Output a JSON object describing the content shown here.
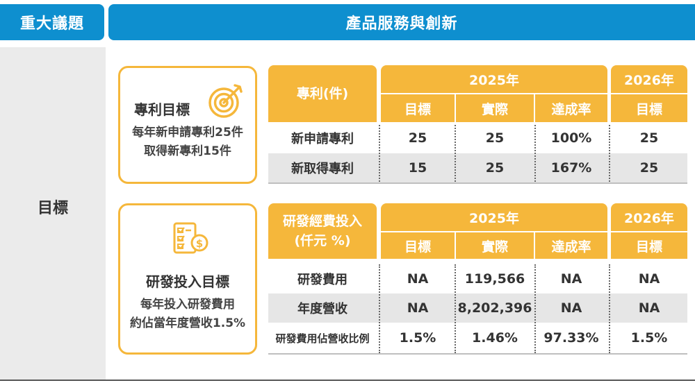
{
  "header": {
    "left": "重大議題",
    "right": "產品服務與創新"
  },
  "side_label": "目標",
  "patent": {
    "card_title": "專利目標",
    "card_lines": [
      "每年新申請專利25件",
      "取得新專利15件"
    ],
    "icon": "target-arrow-icon",
    "table_header": "專利(件)",
    "year1": "2025年",
    "year2": "2026年",
    "cols": [
      "目標",
      "實際",
      "達成率",
      "目標"
    ],
    "rows": [
      {
        "label": "新申請專利",
        "values": [
          "25",
          "25",
          "100%",
          "25"
        ]
      },
      {
        "label": "新取得專利",
        "values": [
          "15",
          "25",
          "167%",
          "25"
        ]
      }
    ]
  },
  "rnd": {
    "card_title": "研發投入目標",
    "card_lines": [
      "每年投入研發費用",
      "約佔當年度營收1.5%"
    ],
    "icon": "checklist-dollar-icon",
    "table_header": [
      "研發經費投入",
      "(仟元 %)"
    ],
    "year1": "2025年",
    "year2": "2026年",
    "cols": [
      "目標",
      "實際",
      "達成率",
      "目標"
    ],
    "rows": [
      {
        "label": "研發費用",
        "values": [
          "NA",
          "119,566",
          "NA",
          "NA"
        ]
      },
      {
        "label": "年度營收",
        "values": [
          "NA",
          "8,202,396",
          "NA",
          "NA"
        ]
      },
      {
        "label": "研發費用佔營收比例",
        "values": [
          "1.5%",
          "1.46%",
          "97.33%",
          "1.5%"
        ]
      }
    ]
  },
  "colors": {
    "header_blue": "#0e8fcf",
    "accent_orange": "#f5b73b",
    "row_grey": "#e6e6e6"
  }
}
